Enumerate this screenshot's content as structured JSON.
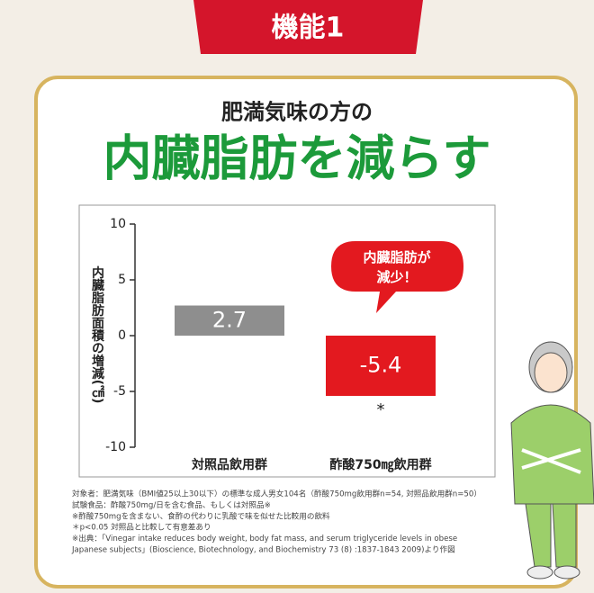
{
  "badge": "機能1",
  "subtitle": "肥満気味の方の",
  "headline": "内臓脂肪を減らす",
  "chart_data": {
    "type": "bar",
    "categories": [
      "対照品飲用群",
      "酢酸750㎎飲用群"
    ],
    "values": [
      2.7,
      -5.4
    ],
    "colors": [
      "#8e8e8e",
      "#e3191f"
    ],
    "ylabel": "内臓脂肪面積の増減(㎠)",
    "ylim": [
      -10,
      10
    ],
    "yticks": [
      -10,
      -5,
      0,
      5,
      10
    ],
    "callout": "内臓脂肪が減少！",
    "significance_mark": "*"
  },
  "footnotes": [
    "対象者：肥満気味（BMI値25以上30以下）の標準な成人男女104名（酢酸750mg飲用群n=54, 対照品飲用群n=50）",
    "試験食品：酢酸750mg/日を含む食品、もしくは対照品※",
    "※酢酸750mgを含まない、食酢の代わりに乳酸で味を似せた比較用の飲料",
    "＊p<0.05 対照品と比較して有意差あり",
    "※出典：「Vinegar intake reduces body weight, body fat mass, and serum triglyceride levels in obese",
    "Japanese subjects」(Bioscience, Biotechnology, and Biochemistry 73 (8) :1837-1843 2009)より作図"
  ]
}
